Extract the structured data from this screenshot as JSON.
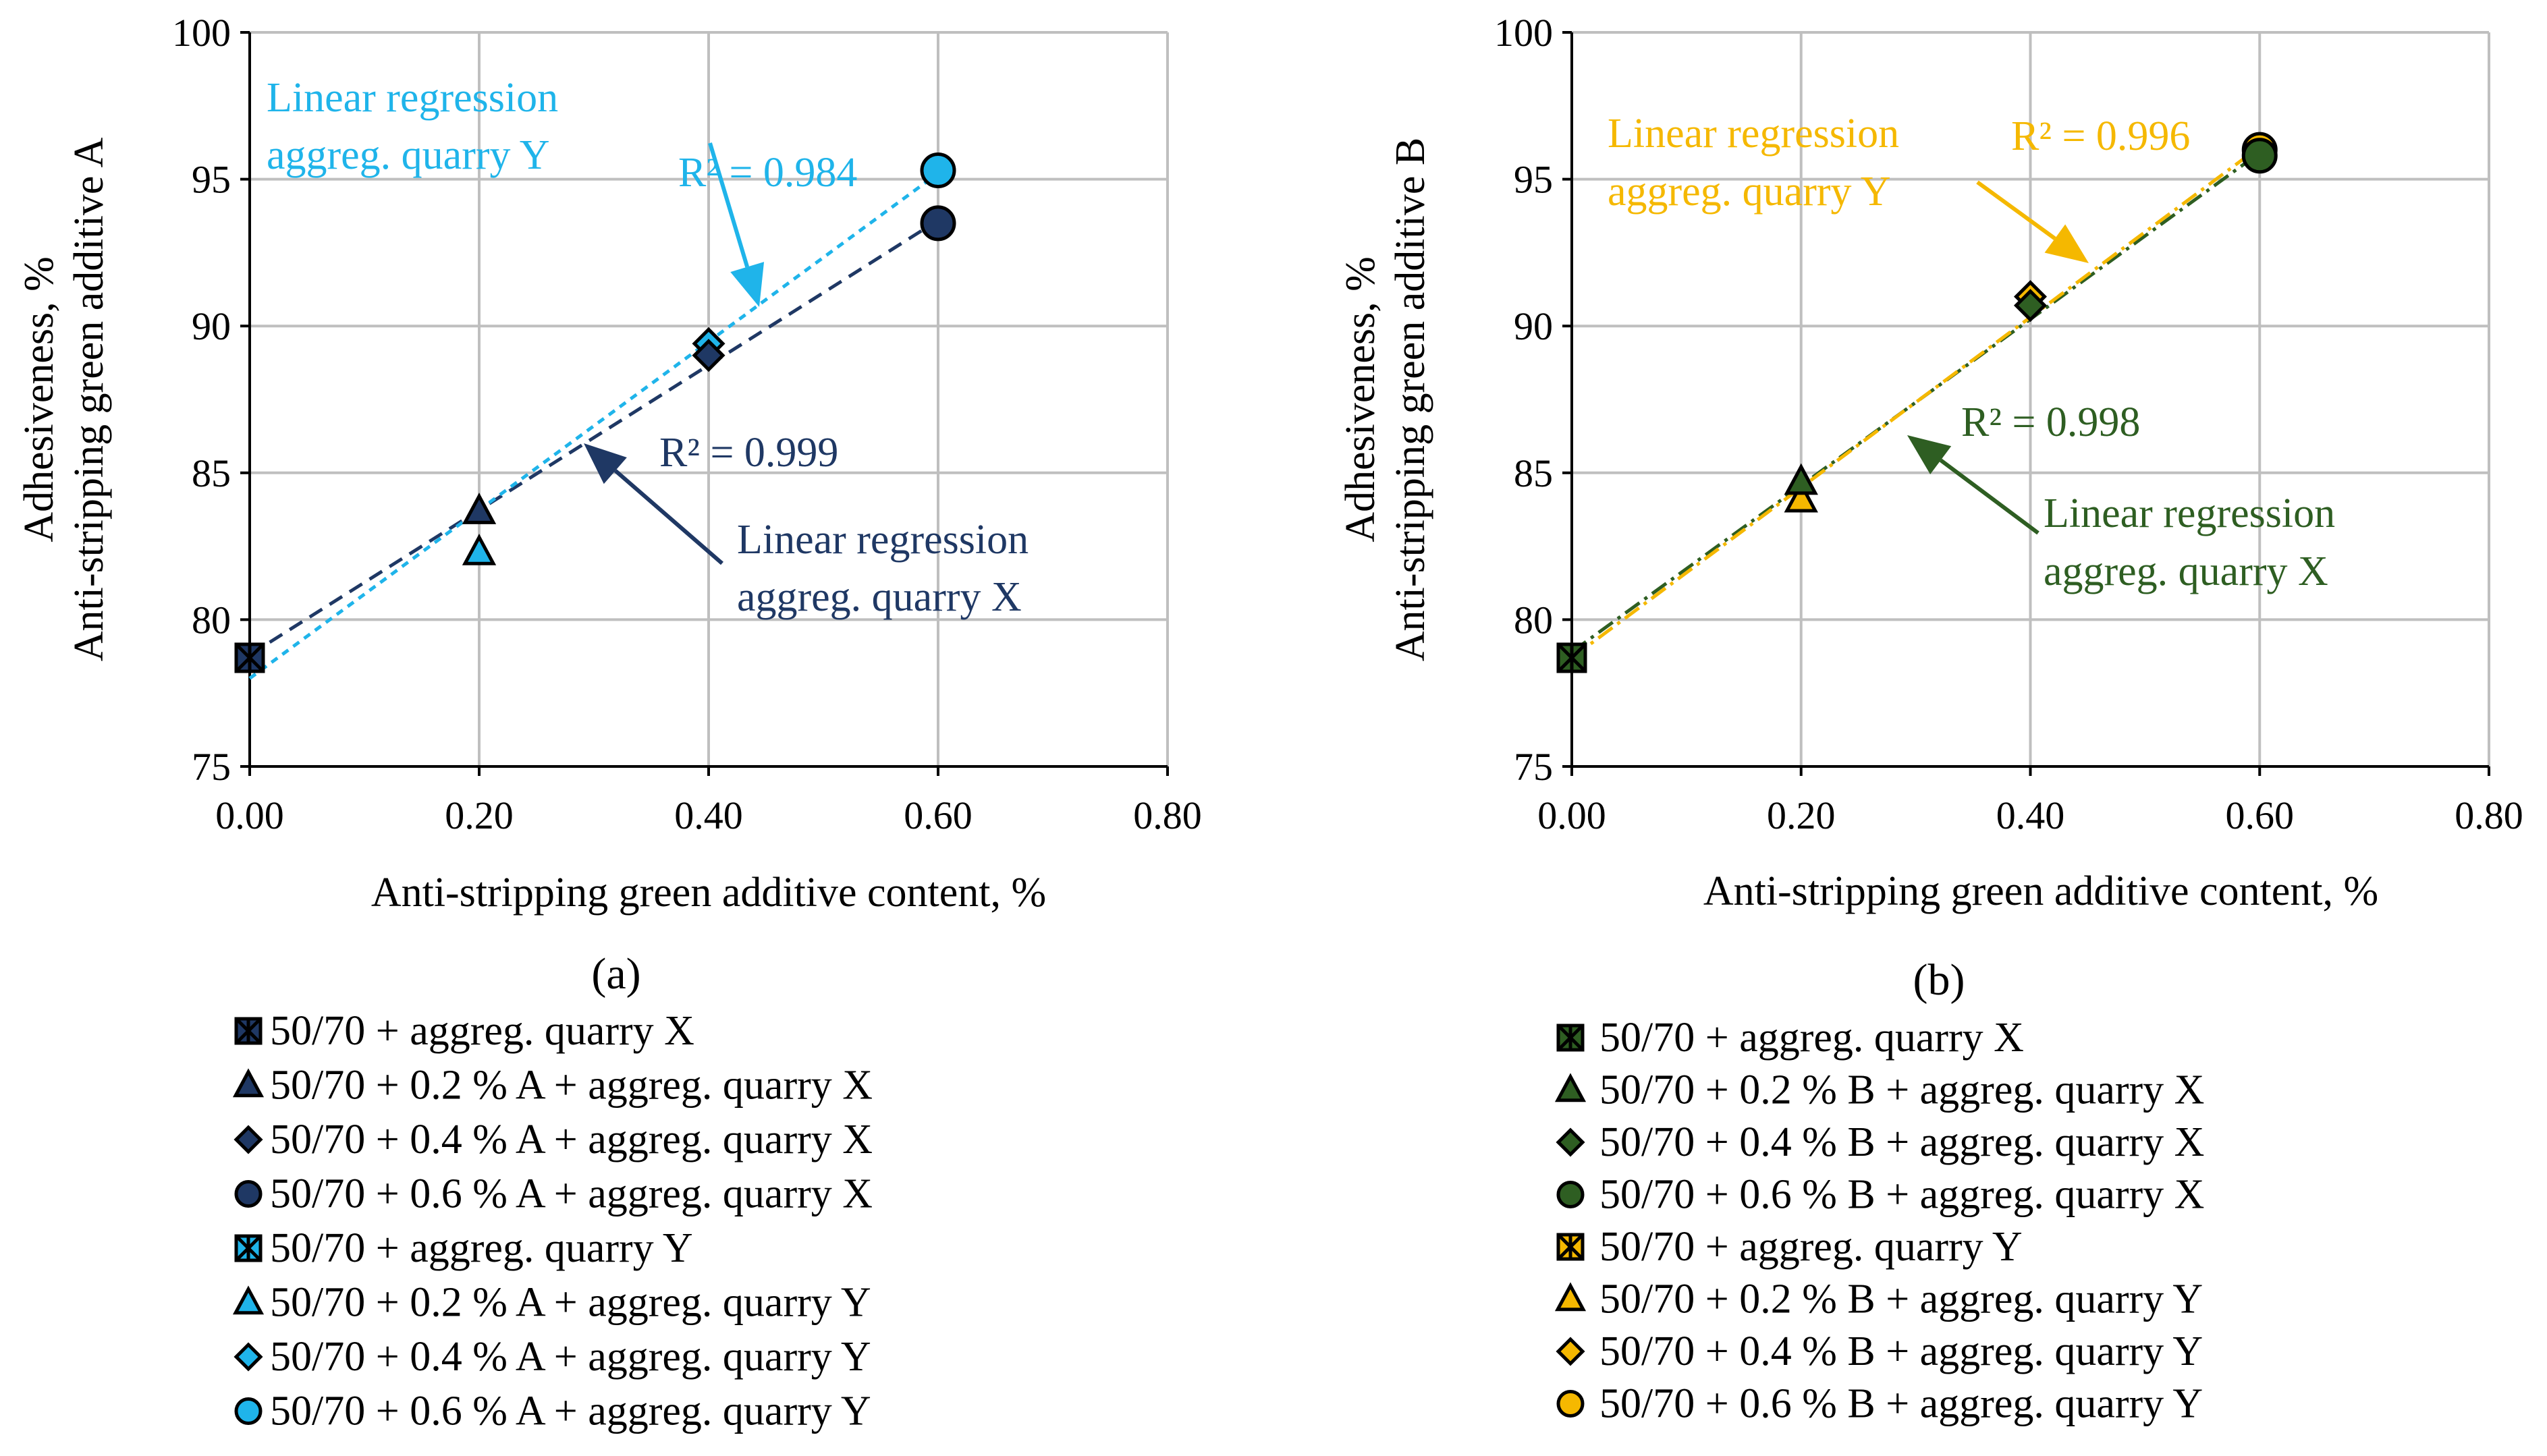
{
  "chart_data": [
    {
      "panel_label": "(a)",
      "panel_letter": "a",
      "type": "scatter",
      "title": "",
      "xlabel": "Anti-stripping green additive content, %",
      "ylabel_lines": [
        "Adhesiveness, %",
        "Anti-stripping green additive A"
      ],
      "xlim": [
        0,
        0.8
      ],
      "ylim": [
        75,
        100
      ],
      "xticks": [
        0,
        0.2,
        0.4,
        0.6,
        0.8
      ],
      "xtick_labels": [
        "0.00",
        "0.20",
        "0.40",
        "0.60",
        "0.80"
      ],
      "yticks": [
        75,
        80,
        85,
        90,
        95,
        100
      ],
      "ytick_labels": [
        "75",
        "80",
        "85",
        "90",
        "95",
        "100"
      ],
      "grid": true,
      "series": [
        {
          "name": "50/70 + aggreg. quarry X",
          "x": 0.0,
          "y": 78.7,
          "marker": "square-x",
          "color": "#1f3864"
        },
        {
          "name": "50/70 + 0.2 % A + aggreg. quarry X",
          "x": 0.2,
          "y": 83.7,
          "marker": "triangle",
          "color": "#1f3864"
        },
        {
          "name": "50/70 + 0.4 % A + aggreg. quarry X",
          "x": 0.4,
          "y": 89.0,
          "marker": "diamond",
          "color": "#1f3864"
        },
        {
          "name": "50/70 + 0.6 % A + aggreg. quarry X",
          "x": 0.6,
          "y": 93.5,
          "marker": "circle",
          "color": "#1f3864"
        },
        {
          "name": "50/70 + aggreg. quarry Y",
          "x": 0.0,
          "y": 78.7,
          "marker": "square-x",
          "color": "#1fb4ea"
        },
        {
          "name": "50/70 + 0.2 % A + aggreg. quarry Y",
          "x": 0.2,
          "y": 82.3,
          "marker": "triangle",
          "color": "#1fb4ea"
        },
        {
          "name": "50/70 + 0.4 % A + aggreg. quarry Y",
          "x": 0.4,
          "y": 89.4,
          "marker": "diamond",
          "color": "#1fb4ea"
        },
        {
          "name": "50/70 + 0.6 % A + aggreg. quarry Y",
          "x": 0.6,
          "y": 95.3,
          "marker": "circle",
          "color": "#1fb4ea"
        }
      ],
      "trendlines": [
        {
          "name": "Linear regression aggreg. quarry X",
          "x": [
            0,
            0.6
          ],
          "y": [
            78.8,
            93.6
          ],
          "color": "#1f3864",
          "dash": "long"
        },
        {
          "name": "Linear regression aggreg. quarry Y",
          "x": [
            0,
            0.6
          ],
          "y": [
            78.0,
            95.2
          ],
          "color": "#1fb4ea",
          "dash": "short"
        }
      ],
      "annotations": [
        {
          "text": "R² = 0.984",
          "color": "#1fb4ea"
        },
        {
          "text": "R² = 0.999",
          "color": "#1f3864"
        },
        {
          "lines": [
            "Linear regression",
            "aggreg. quarry Y"
          ],
          "color": "#1fb4ea"
        },
        {
          "lines": [
            "Linear regression",
            "aggreg. quarry X"
          ],
          "color": "#1f3864"
        }
      ]
    },
    {
      "panel_label": "(b)",
      "panel_letter": "b",
      "type": "scatter",
      "title": "",
      "xlabel": "Anti-stripping green additive content, %",
      "ylabel_lines": [
        "Adhesiveness, %",
        "Anti-stripping green additive B"
      ],
      "xlim": [
        0,
        0.8
      ],
      "ylim": [
        75,
        100
      ],
      "xticks": [
        0,
        0.2,
        0.4,
        0.6,
        0.8
      ],
      "xtick_labels": [
        "0.00",
        "0.20",
        "0.40",
        "0.60",
        "0.80"
      ],
      "yticks": [
        75,
        80,
        85,
        90,
        95,
        100
      ],
      "ytick_labels": [
        "75",
        "80",
        "85",
        "90",
        "95",
        "100"
      ],
      "grid": true,
      "series": [
        {
          "name": "50/70 + aggreg. quarry X",
          "x": 0.0,
          "y": 78.7,
          "marker": "square-x",
          "color": "#2e5e22"
        },
        {
          "name": "50/70 + 0.2 % B + aggreg. quarry X",
          "x": 0.2,
          "y": 84.7,
          "marker": "triangle",
          "color": "#2e5e22"
        },
        {
          "name": "50/70 + 0.4 % B + aggreg. quarry X",
          "x": 0.4,
          "y": 90.7,
          "marker": "diamond",
          "color": "#2e5e22"
        },
        {
          "name": "50/70 + 0.6 % B + aggreg. quarry X",
          "x": 0.6,
          "y": 95.8,
          "marker": "circle",
          "color": "#2e5e22"
        },
        {
          "name": "50/70 + aggreg. quarry Y",
          "x": 0.0,
          "y": 78.7,
          "marker": "square-x",
          "color": "#f5b800"
        },
        {
          "name": "50/70 + 0.2 % B + aggreg. quarry Y",
          "x": 0.2,
          "y": 84.1,
          "marker": "triangle",
          "color": "#f5b800"
        },
        {
          "name": "50/70 + 0.4 % B + aggreg. quarry Y",
          "x": 0.4,
          "y": 91.0,
          "marker": "diamond",
          "color": "#f5b800"
        },
        {
          "name": "50/70 + 0.6 % B + aggreg. quarry Y",
          "x": 0.6,
          "y": 96.0,
          "marker": "circle",
          "color": "#f5b800"
        }
      ],
      "trendlines": [
        {
          "name": "Linear regression aggreg. quarry X",
          "x": [
            0,
            0.6
          ],
          "y": [
            78.9,
            95.9
          ],
          "color": "#2e5e22",
          "dash": "dashdot"
        },
        {
          "name": "Linear regression aggreg. quarry Y",
          "x": [
            0,
            0.6
          ],
          "y": [
            78.7,
            96.1
          ],
          "color": "#f5b800",
          "dash": "dashdot"
        }
      ],
      "annotations": [
        {
          "text": "R² = 0.996",
          "color": "#f5b800"
        },
        {
          "text": "R² = 0.998",
          "color": "#2e5e22"
        },
        {
          "lines": [
            "Linear regression",
            "aggreg. quarry Y"
          ],
          "color": "#f5b800"
        },
        {
          "lines": [
            "Linear regression",
            "aggreg. quarry X"
          ],
          "color": "#2e5e22"
        }
      ]
    }
  ]
}
